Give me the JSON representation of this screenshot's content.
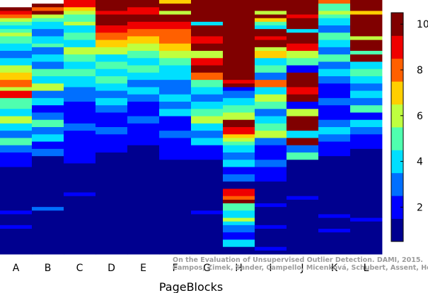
{
  "chart_data": {
    "type": "heatmap",
    "xlabel": "PageBlocks",
    "ylabel": "",
    "title": "",
    "categories": [
      "A",
      "B",
      "C",
      "D",
      "E",
      "F",
      "G",
      "H",
      "I",
      "J",
      "K",
      "L"
    ],
    "row_count": 70,
    "colorbar": {
      "range": [
        0.5,
        10.5
      ],
      "levels": 10,
      "ticks": [
        2,
        4,
        6,
        8,
        10
      ],
      "colors": [
        "#00008f",
        "#0000ff",
        "#006fff",
        "#00dfff",
        "#4fffaf",
        "#bfff3f",
        "#ffcf00",
        "#ff6000",
        "#ef0000",
        "#800000"
      ]
    },
    "columns": [
      {
        "name": "A",
        "segments": [
          [
            2,
            10
          ],
          [
            3,
            9
          ],
          [
            4,
            8
          ],
          [
            5,
            6
          ],
          [
            6,
            5
          ],
          [
            7,
            4
          ],
          [
            8,
            5
          ],
          [
            9,
            6
          ],
          [
            10,
            5
          ],
          [
            12,
            4
          ],
          [
            14,
            3
          ],
          [
            16,
            4
          ],
          [
            18,
            6
          ],
          [
            20,
            7
          ],
          [
            22,
            8
          ],
          [
            24,
            6
          ],
          [
            25,
            9
          ],
          [
            27,
            5
          ],
          [
            30,
            4
          ],
          [
            32,
            6
          ],
          [
            34,
            4
          ],
          [
            36,
            3
          ],
          [
            38,
            5
          ],
          [
            40,
            3
          ],
          [
            42,
            2
          ],
          [
            46,
            1
          ],
          [
            58,
            2
          ],
          [
            59,
            1
          ],
          [
            62,
            2
          ],
          [
            63,
            1
          ]
        ]
      },
      {
        "name": "B",
        "segments": [
          [
            1,
            10
          ],
          [
            2,
            8
          ],
          [
            3,
            10
          ],
          [
            4,
            6
          ],
          [
            5,
            5
          ],
          [
            6,
            4
          ],
          [
            8,
            3
          ],
          [
            10,
            4
          ],
          [
            12,
            5
          ],
          [
            13,
            3
          ],
          [
            15,
            4
          ],
          [
            17,
            3
          ],
          [
            19,
            5
          ],
          [
            21,
            4
          ],
          [
            23,
            6
          ],
          [
            25,
            3
          ],
          [
            27,
            4
          ],
          [
            29,
            2
          ],
          [
            31,
            3
          ],
          [
            33,
            5
          ],
          [
            35,
            3
          ],
          [
            37,
            4
          ],
          [
            39,
            2
          ],
          [
            41,
            3
          ],
          [
            43,
            1
          ],
          [
            57,
            3
          ],
          [
            58,
            1
          ]
        ]
      },
      {
        "name": "C",
        "segments": [
          [
            0,
            9
          ],
          [
            2,
            7
          ],
          [
            3,
            6
          ],
          [
            4,
            5
          ],
          [
            6,
            6
          ],
          [
            7,
            4
          ],
          [
            9,
            5
          ],
          [
            11,
            4
          ],
          [
            13,
            6
          ],
          [
            15,
            5
          ],
          [
            17,
            4
          ],
          [
            19,
            5
          ],
          [
            21,
            4
          ],
          [
            24,
            3
          ],
          [
            28,
            2
          ],
          [
            34,
            3
          ],
          [
            36,
            2
          ],
          [
            45,
            1
          ],
          [
            53,
            2
          ],
          [
            54,
            1
          ]
        ]
      },
      {
        "name": "D",
        "segments": [
          [
            0,
            10
          ],
          [
            3,
            9
          ],
          [
            4,
            10
          ],
          [
            5,
            10
          ],
          [
            7,
            9
          ],
          [
            9,
            8
          ],
          [
            11,
            7
          ],
          [
            13,
            6
          ],
          [
            15,
            4
          ],
          [
            17,
            5
          ],
          [
            19,
            4
          ],
          [
            21,
            5
          ],
          [
            23,
            4
          ],
          [
            25,
            3
          ],
          [
            27,
            4
          ],
          [
            29,
            3
          ],
          [
            31,
            2
          ],
          [
            35,
            3
          ],
          [
            37,
            2
          ],
          [
            42,
            1
          ]
        ]
      },
      {
        "name": "E",
        "segments": [
          [
            0,
            10
          ],
          [
            2,
            9
          ],
          [
            4,
            10
          ],
          [
            6,
            9
          ],
          [
            8,
            8
          ],
          [
            10,
            7
          ],
          [
            12,
            6
          ],
          [
            14,
            5
          ],
          [
            16,
            4
          ],
          [
            18,
            5
          ],
          [
            20,
            4
          ],
          [
            22,
            3
          ],
          [
            24,
            4
          ],
          [
            26,
            3
          ],
          [
            28,
            2
          ],
          [
            32,
            3
          ],
          [
            34,
            2
          ],
          [
            40,
            1
          ]
        ]
      },
      {
        "name": "F",
        "segments": [
          [
            0,
            7
          ],
          [
            1,
            10
          ],
          [
            3,
            6
          ],
          [
            4,
            10
          ],
          [
            6,
            9
          ],
          [
            8,
            8
          ],
          [
            12,
            7
          ],
          [
            14,
            6
          ],
          [
            16,
            5
          ],
          [
            18,
            4
          ],
          [
            22,
            3
          ],
          [
            26,
            4
          ],
          [
            28,
            3
          ],
          [
            30,
            4
          ],
          [
            32,
            2
          ],
          [
            36,
            3
          ],
          [
            38,
            2
          ],
          [
            44,
            1
          ]
        ]
      },
      {
        "name": "G",
        "segments": [
          [
            0,
            10
          ],
          [
            6,
            4
          ],
          [
            7,
            10
          ],
          [
            10,
            9
          ],
          [
            12,
            10
          ],
          [
            14,
            6
          ],
          [
            16,
            9
          ],
          [
            18,
            10
          ],
          [
            20,
            8
          ],
          [
            22,
            5
          ],
          [
            24,
            4
          ],
          [
            26,
            3
          ],
          [
            28,
            4
          ],
          [
            30,
            5
          ],
          [
            32,
            6
          ],
          [
            34,
            4
          ],
          [
            36,
            3
          ],
          [
            38,
            4
          ],
          [
            40,
            2
          ],
          [
            44,
            1
          ],
          [
            58,
            2
          ],
          [
            59,
            1
          ]
        ]
      },
      {
        "name": "H",
        "segments": [
          [
            0,
            10
          ],
          [
            22,
            9
          ],
          [
            23,
            10
          ],
          [
            24,
            2
          ],
          [
            25,
            3
          ],
          [
            27,
            4
          ],
          [
            29,
            5
          ],
          [
            31,
            6
          ],
          [
            33,
            10
          ],
          [
            35,
            9
          ],
          [
            37,
            7
          ],
          [
            38,
            6
          ],
          [
            39,
            5
          ],
          [
            40,
            4
          ],
          [
            42,
            3
          ],
          [
            44,
            4
          ],
          [
            46,
            2
          ],
          [
            48,
            3
          ],
          [
            50,
            1
          ],
          [
            52,
            9
          ],
          [
            54,
            8
          ],
          [
            55,
            10
          ],
          [
            56,
            5
          ],
          [
            58,
            4
          ],
          [
            60,
            6
          ],
          [
            61,
            4
          ],
          [
            62,
            3
          ],
          [
            64,
            2
          ],
          [
            66,
            4
          ],
          [
            68,
            1
          ]
        ]
      },
      {
        "name": "I",
        "segments": [
          [
            0,
            10
          ],
          [
            3,
            6
          ],
          [
            4,
            10
          ],
          [
            5,
            7
          ],
          [
            6,
            5
          ],
          [
            7,
            4
          ],
          [
            8,
            10
          ],
          [
            10,
            9
          ],
          [
            11,
            10
          ],
          [
            13,
            6
          ],
          [
            14,
            7
          ],
          [
            16,
            4
          ],
          [
            18,
            5
          ],
          [
            20,
            3
          ],
          [
            22,
            8
          ],
          [
            24,
            4
          ],
          [
            26,
            6
          ],
          [
            28,
            5
          ],
          [
            30,
            3
          ],
          [
            32,
            4
          ],
          [
            34,
            5
          ],
          [
            36,
            6
          ],
          [
            38,
            3
          ],
          [
            40,
            2
          ],
          [
            44,
            3
          ],
          [
            46,
            2
          ],
          [
            50,
            1
          ],
          [
            56,
            2
          ],
          [
            57,
            1
          ],
          [
            62,
            2
          ],
          [
            63,
            1
          ],
          [
            68,
            2
          ],
          [
            69,
            1
          ]
        ]
      },
      {
        "name": "J",
        "segments": [
          [
            0,
            10
          ],
          [
            4,
            9
          ],
          [
            5,
            10
          ],
          [
            8,
            4
          ],
          [
            9,
            10
          ],
          [
            12,
            9
          ],
          [
            14,
            6
          ],
          [
            16,
            5
          ],
          [
            18,
            2
          ],
          [
            20,
            10
          ],
          [
            24,
            9
          ],
          [
            26,
            10
          ],
          [
            28,
            2
          ],
          [
            30,
            6
          ],
          [
            32,
            10
          ],
          [
            36,
            4
          ],
          [
            38,
            10
          ],
          [
            40,
            3
          ],
          [
            42,
            5
          ],
          [
            44,
            1
          ],
          [
            54,
            2
          ],
          [
            55,
            1
          ]
        ]
      },
      {
        "name": "K",
        "segments": [
          [
            0,
            8
          ],
          [
            1,
            5
          ],
          [
            3,
            6
          ],
          [
            4,
            5
          ],
          [
            5,
            4
          ],
          [
            7,
            3
          ],
          [
            9,
            5
          ],
          [
            11,
            4
          ],
          [
            13,
            3
          ],
          [
            15,
            5
          ],
          [
            17,
            3
          ],
          [
            19,
            4
          ],
          [
            21,
            3
          ],
          [
            23,
            2
          ],
          [
            27,
            3
          ],
          [
            29,
            2
          ],
          [
            33,
            3
          ],
          [
            35,
            4
          ],
          [
            37,
            3
          ],
          [
            39,
            2
          ],
          [
            43,
            1
          ],
          [
            59,
            2
          ],
          [
            60,
            1
          ],
          [
            63,
            2
          ],
          [
            64,
            1
          ]
        ]
      },
      {
        "name": "L",
        "segments": [
          [
            0,
            10
          ],
          [
            3,
            7
          ],
          [
            4,
            10
          ],
          [
            10,
            6
          ],
          [
            11,
            10
          ],
          [
            14,
            5
          ],
          [
            15,
            10
          ],
          [
            17,
            4
          ],
          [
            19,
            5
          ],
          [
            21,
            4
          ],
          [
            23,
            3
          ],
          [
            25,
            4
          ],
          [
            27,
            3
          ],
          [
            29,
            5
          ],
          [
            31,
            2
          ],
          [
            33,
            4
          ],
          [
            35,
            3
          ],
          [
            37,
            2
          ],
          [
            41,
            1
          ],
          [
            60,
            2
          ],
          [
            61,
            1
          ]
        ]
      }
    ]
  },
  "credit": {
    "line1": "On the Evaluation of Unsupervised Outlier Detection. DAMI, 2015.",
    "line2": "Campos, Zimek, Sander, Campello, Micenková, Schubert, Assent, Houle"
  }
}
